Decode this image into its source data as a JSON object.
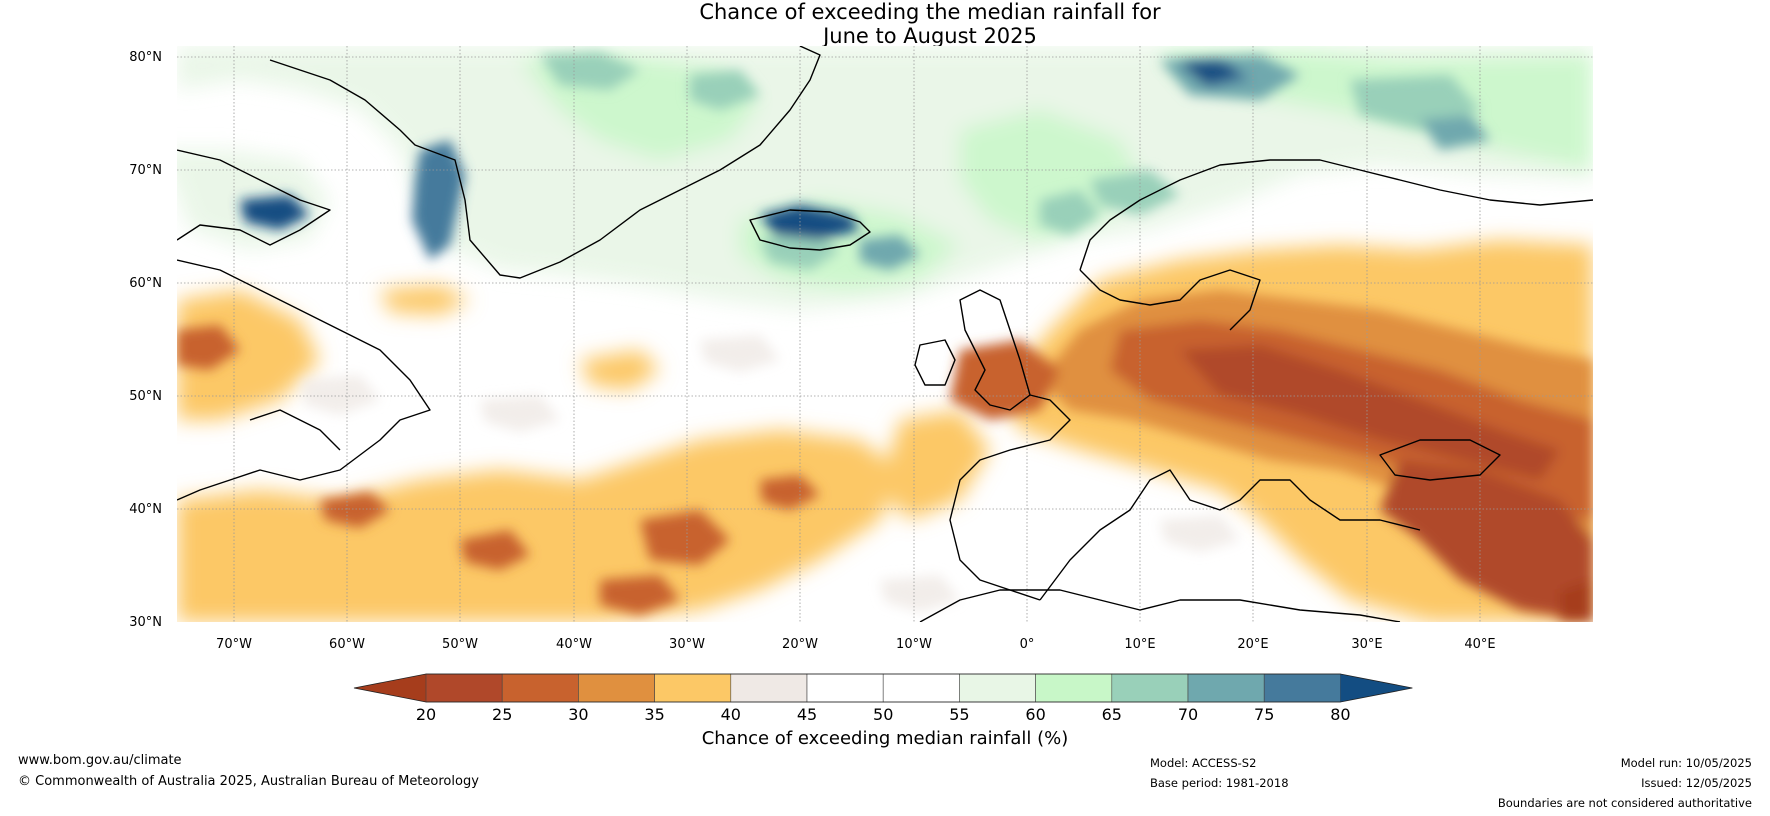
{
  "title": {
    "line1": "Chance of exceeding the median rainfall for",
    "line2": "June to August 2025"
  },
  "map": {
    "lat_ticks": [
      "80°N",
      "70°N",
      "60°N",
      "50°N",
      "40°N",
      "30°N"
    ],
    "lon_ticks": [
      "70°W",
      "60°W",
      "50°W",
      "40°W",
      "30°W",
      "20°W",
      "10°W",
      "0°",
      "10°E",
      "20°E",
      "30°E",
      "40°E"
    ],
    "extent": {
      "lon_min": -75,
      "lon_max": 50,
      "lat_min": 30,
      "lat_max": 81
    }
  },
  "colorbar": {
    "label": "Chance of exceeding median rainfall (%)",
    "ticks": [
      "20",
      "25",
      "30",
      "35",
      "40",
      "45",
      "50",
      "55",
      "60",
      "65",
      "70",
      "75",
      "80"
    ],
    "colors": [
      "#a63d1c",
      "#b0482a",
      "#c8622e",
      "#e0903f",
      "#fcc866",
      "#efe9e5",
      "#ffffff",
      "#ffffff",
      "#e8f6e6",
      "#c8f7c8",
      "#99d0b9",
      "#6fa8ae",
      "#457a9c",
      "#134d82"
    ]
  },
  "footer": {
    "website": "www.bom.gov.au/climate",
    "copyright": "© Commonwealth of Australia 2025, Australian Bureau of Meteorology",
    "model": "Model: ACCESS-S2",
    "base_period": "Base period: 1981-2018",
    "model_run": "Model run: 10/05/2025",
    "issued": "Issued: 12/05/2025",
    "disclaimer": "Boundaries are not considered authoritative"
  }
}
